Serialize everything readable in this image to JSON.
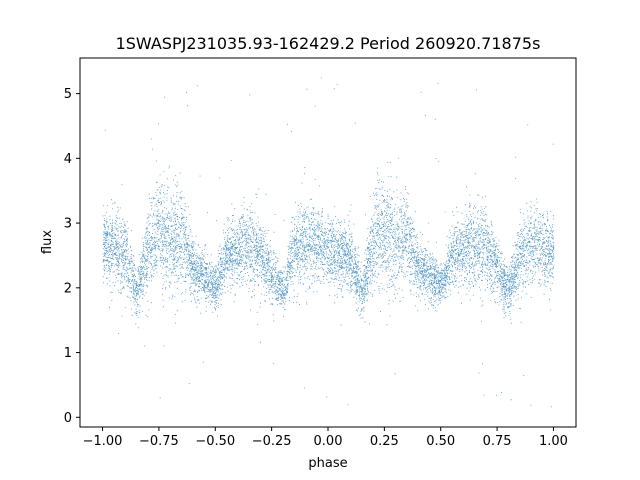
{
  "chart_data": {
    "type": "scatter",
    "title": "1SWASPJ231035.93-162429.2 Period 260920.71875s",
    "xlabel": "phase",
    "ylabel": "flux",
    "xlim": [
      -1.1,
      1.1
    ],
    "ylim": [
      -0.15,
      5.55
    ],
    "xticks": [
      -1.0,
      -0.75,
      -0.5,
      -0.25,
      0.0,
      0.25,
      0.5,
      0.75,
      1.0
    ],
    "xtick_labels": [
      "−1.00",
      "−0.75",
      "−0.50",
      "−0.25",
      "0.00",
      "0.25",
      "0.50",
      "0.75",
      "1.00"
    ],
    "yticks": [
      0,
      1,
      2,
      3,
      4,
      5
    ],
    "ytick_labels": [
      "0",
      "1",
      "2",
      "3",
      "4",
      "5"
    ],
    "grid": false,
    "legend": "none",
    "marker_color": "#1f77b4",
    "series": [
      {
        "phase_profile": {
          "x": [
            -1.0,
            -0.95,
            -0.9,
            -0.85,
            -0.8,
            -0.75,
            -0.7,
            -0.65,
            -0.6,
            -0.55,
            -0.5,
            -0.45,
            -0.4,
            -0.35,
            -0.3,
            -0.25,
            -0.2,
            -0.15,
            -0.1,
            -0.05,
            0.0,
            0.05,
            0.1,
            0.15,
            0.2,
            0.25,
            0.3,
            0.35,
            0.4,
            0.45,
            0.5,
            0.55,
            0.6,
            0.65,
            0.7,
            0.75,
            0.8,
            0.85,
            0.9,
            0.95,
            1.0
          ],
          "median_flux": [
            2.6,
            2.7,
            2.5,
            1.9,
            2.6,
            2.9,
            2.7,
            2.8,
            2.3,
            2.2,
            2.0,
            2.5,
            2.6,
            2.7,
            2.5,
            2.2,
            1.95,
            2.6,
            2.7,
            2.7,
            2.6,
            2.5,
            2.5,
            1.9,
            2.8,
            2.9,
            2.7,
            2.8,
            2.3,
            2.2,
            2.05,
            2.5,
            2.6,
            2.7,
            2.6,
            2.3,
            1.95,
            2.5,
            2.7,
            2.6,
            2.6
          ],
          "spread": [
            0.45,
            0.5,
            0.55,
            0.3,
            0.7,
            0.75,
            0.75,
            0.65,
            0.4,
            0.35,
            0.3,
            0.4,
            0.5,
            0.6,
            0.5,
            0.4,
            0.3,
            0.5,
            0.55,
            0.5,
            0.5,
            0.45,
            0.5,
            0.3,
            0.7,
            0.75,
            0.75,
            0.6,
            0.4,
            0.35,
            0.3,
            0.4,
            0.5,
            0.6,
            0.55,
            0.4,
            0.3,
            0.5,
            0.55,
            0.5,
            0.45
          ]
        },
        "n_points": 9000
      }
    ]
  }
}
